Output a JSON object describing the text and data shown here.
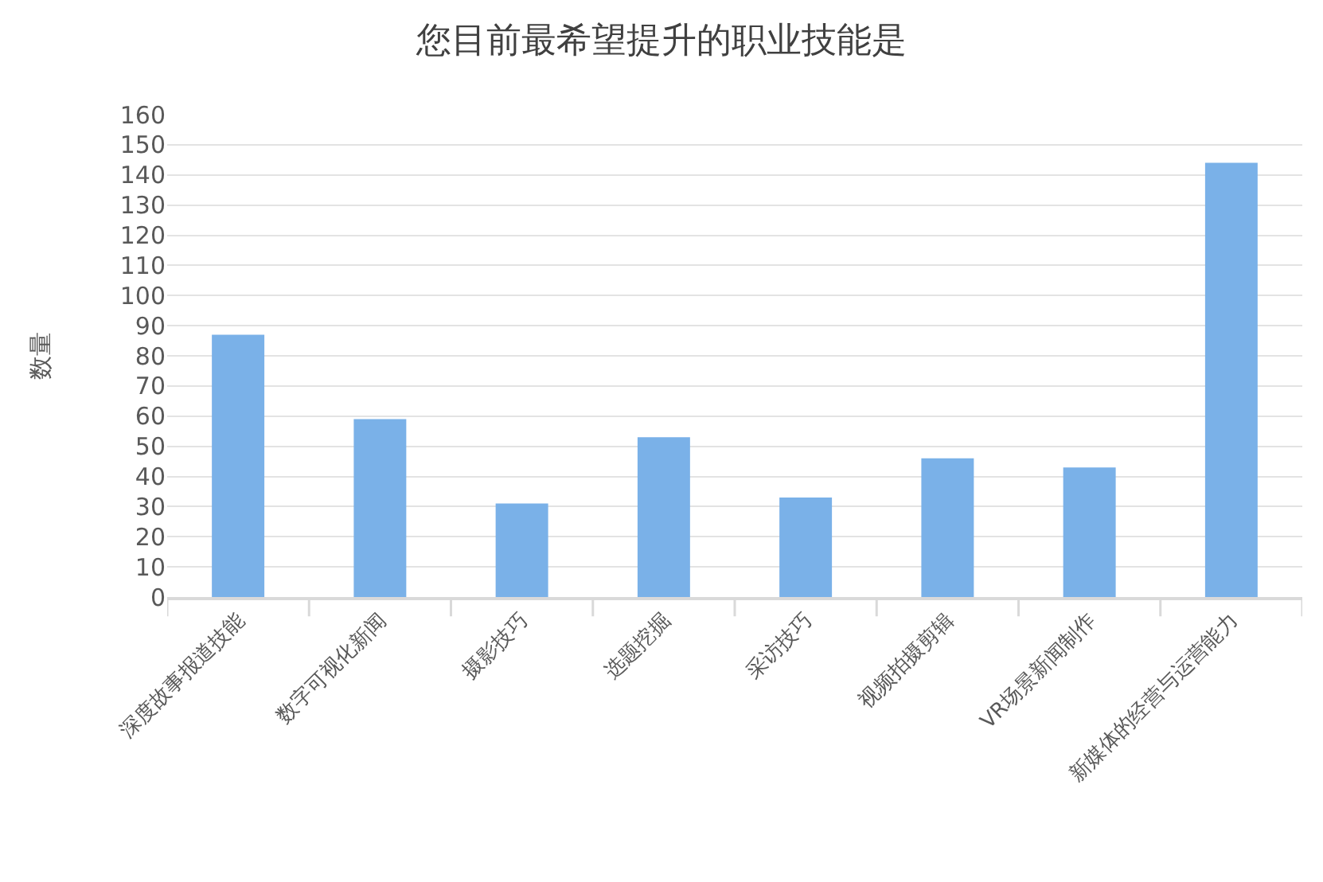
{
  "chart_data": {
    "type": "bar",
    "title": "您目前最希望提升的职业技能是",
    "ylabel": "数量",
    "categories": [
      "深度故事报道技能",
      "数字可视化新闻",
      "摄影技巧",
      "选题挖掘",
      "采访技巧",
      "视频拍摄剪辑",
      "VR场景新闻制作",
      "新媒体的经营与运营能力"
    ],
    "values": [
      87,
      59,
      31,
      53,
      33,
      46,
      43,
      144
    ],
    "color": "#7ab1e8",
    "ylim": [
      0,
      160
    ],
    "yticks": [
      0,
      10,
      20,
      30,
      40,
      50,
      60,
      70,
      80,
      90,
      100,
      110,
      120,
      130,
      140,
      150,
      160
    ],
    "grid": "y"
  }
}
